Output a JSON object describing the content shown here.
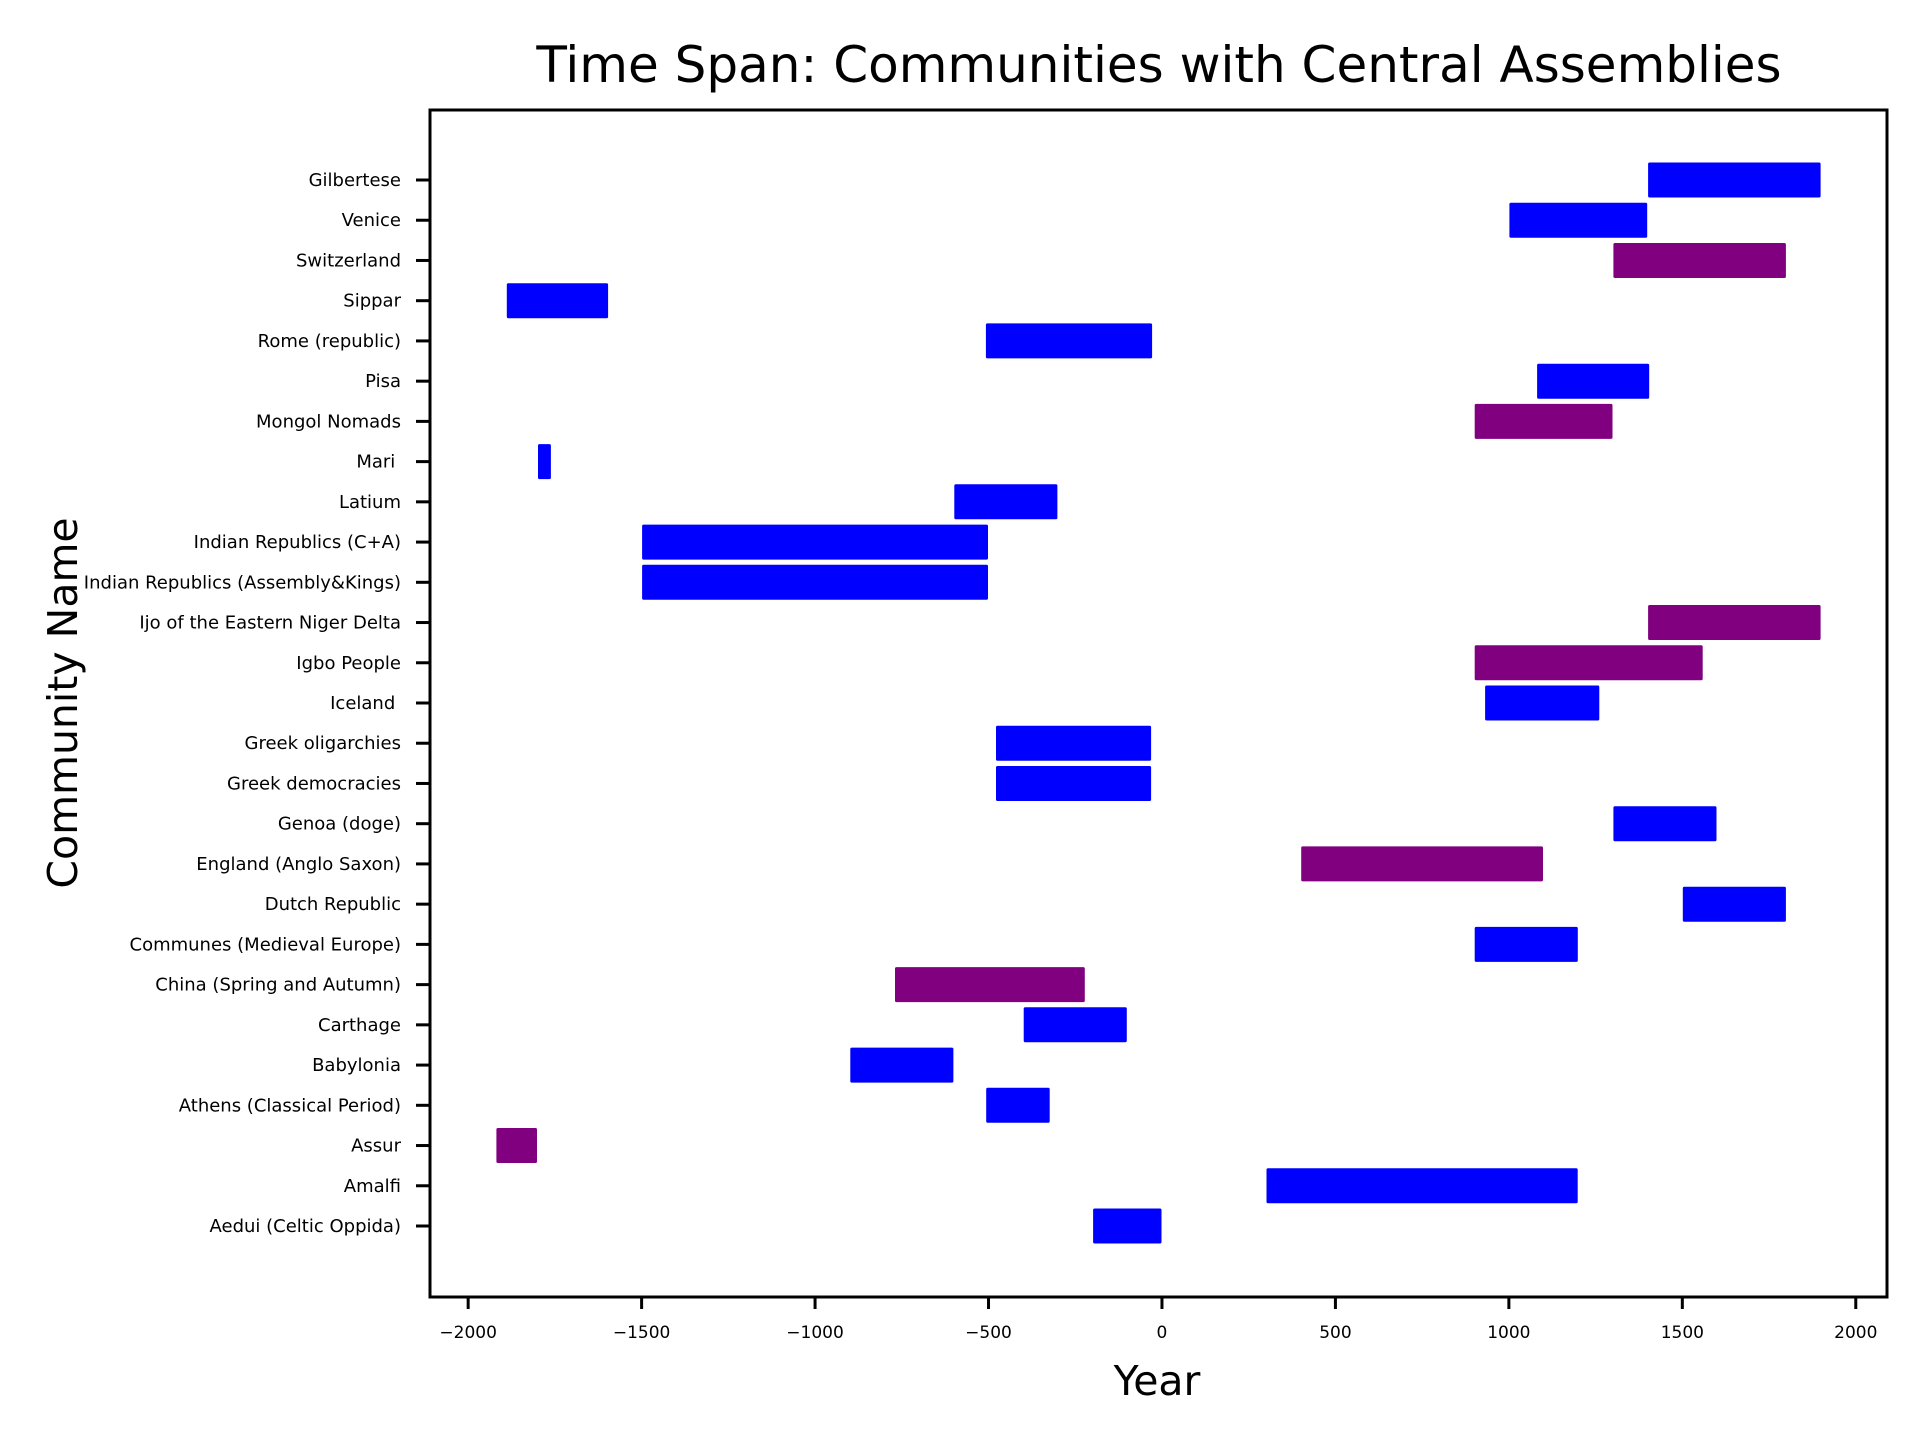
{
  "chart_data": {
    "type": "bar",
    "orientation": "horizontal-range",
    "title": "Time Span: Communities with Central Assemblies",
    "xlabel": "Year",
    "ylabel": "Community Name",
    "xlim": [
      -2110,
      2090
    ],
    "x_ticks": [
      -2000,
      -1500,
      -1000,
      -500,
      0,
      500,
      1000,
      1500,
      2000
    ],
    "x_tick_labels": [
      "−2000",
      "−1500",
      "−1000",
      "−500",
      "0",
      "500",
      "1000",
      "1500",
      "2000"
    ],
    "grid": false,
    "legend": "none",
    "colors": {
      "blue": "#0000ff",
      "purple": "#800080"
    },
    "categories": [
      "Aedui (Celtic Oppida)",
      "Amalfi",
      "Assur",
      "Athens (Classical Period)",
      "Babylonia",
      "Carthage",
      "China (Spring and Autumn)",
      "Communes (Medieval Europe)",
      "Dutch Republic",
      "England (Anglo Saxon)",
      "Genoa (doge)",
      "Greek democracies",
      "Greek oligarchies",
      "Iceland ",
      "Igbo People",
      "Ijo of the Eastern Niger Delta",
      "Indian Republics (Assembly&Kings)",
      "Indian Republics (C+A)",
      "Latium",
      "Mari ",
      "Mongol Nomads",
      "Pisa",
      "Rome (republic)",
      "Sippar",
      "Switzerland",
      "Venice",
      "Gilbertese"
    ],
    "bars": [
      {
        "start": -200,
        "end": 0,
        "color": "blue"
      },
      {
        "start": 300,
        "end": 1200,
        "color": "blue"
      },
      {
        "start": -1920,
        "end": -1800,
        "color": "purple"
      },
      {
        "start": -508,
        "end": -322,
        "color": "blue"
      },
      {
        "start": -900,
        "end": -600,
        "color": "blue"
      },
      {
        "start": -400,
        "end": -100,
        "color": "blue"
      },
      {
        "start": -771,
        "end": -221,
        "color": "purple"
      },
      {
        "start": 900,
        "end": 1200,
        "color": "blue"
      },
      {
        "start": 1500,
        "end": 1800,
        "color": "blue"
      },
      {
        "start": 400,
        "end": 1100,
        "color": "purple"
      },
      {
        "start": 1300,
        "end": 1600,
        "color": "blue"
      },
      {
        "start": -480,
        "end": -30,
        "color": "blue"
      },
      {
        "start": -480,
        "end": -30,
        "color": "blue"
      },
      {
        "start": 930,
        "end": 1262,
        "color": "blue"
      },
      {
        "start": 900,
        "end": 1560,
        "color": "purple"
      },
      {
        "start": 1400,
        "end": 1900,
        "color": "purple"
      },
      {
        "start": -1500,
        "end": -500,
        "color": "blue"
      },
      {
        "start": -1500,
        "end": -500,
        "color": "blue"
      },
      {
        "start": -600,
        "end": -300,
        "color": "blue"
      },
      {
        "start": -1800,
        "end": -1760,
        "color": "blue"
      },
      {
        "start": 900,
        "end": 1300,
        "color": "purple"
      },
      {
        "start": 1080,
        "end": 1406,
        "color": "blue"
      },
      {
        "start": -509,
        "end": -27,
        "color": "blue"
      },
      {
        "start": -1890,
        "end": -1595,
        "color": "blue"
      },
      {
        "start": 1300,
        "end": 1800,
        "color": "purple"
      },
      {
        "start": 1000,
        "end": 1400,
        "color": "blue"
      },
      {
        "start": 1400,
        "end": 1900,
        "color": "blue"
      }
    ]
  }
}
